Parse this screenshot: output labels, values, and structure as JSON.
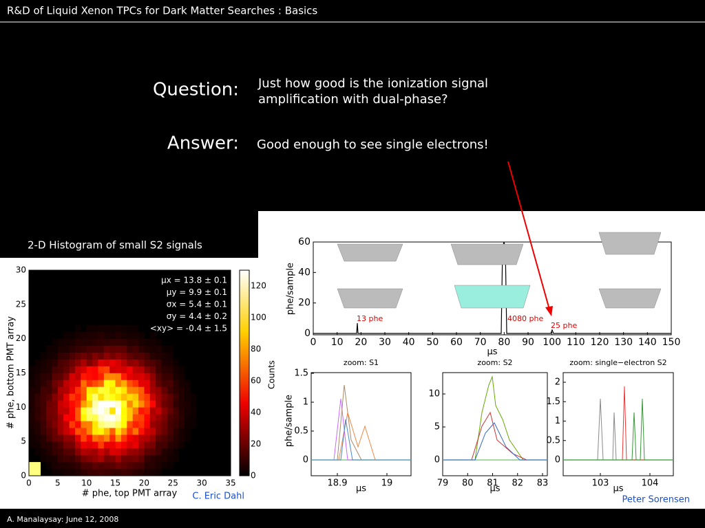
{
  "header": {
    "title": "R&D of Liquid Xenon TPCs for Dark Matter Searches : Basics"
  },
  "question": {
    "label": "Question:",
    "text": [
      "Just how good is the ionization signal",
      "amplification with dual-phase?"
    ]
  },
  "answer": {
    "label": "Answer:",
    "text": "Good enough to see single electrons!"
  },
  "histogram": {
    "caption": "2-D Histogram of small S2 signals",
    "xlabel": "# phe, top PMT array",
    "ylabel": "# phe, bottom PMT array",
    "xticks": [
      0,
      5,
      10,
      15,
      20,
      25,
      30,
      35
    ],
    "yticks": [
      0,
      5,
      10,
      15,
      20,
      25,
      30
    ],
    "colorbar_label": "Counts",
    "colorbar_ticks": [
      0,
      20,
      40,
      60,
      80,
      100,
      120
    ],
    "stats": [
      "μx = 13.8 ± 0.1",
      "μy = 9.9 ± 0.1",
      "σx = 5.4 ± 0.1",
      "σy = 4.4 ± 0.2",
      "<xy> = -0.4 ± 1.5"
    ],
    "credit": "C. Eric Dahl"
  },
  "waveform": {
    "ylabel": "phe/sample",
    "xlabel": "μs",
    "xticks": [
      0,
      10,
      20,
      30,
      40,
      50,
      60,
      70,
      80,
      90,
      100,
      110,
      120,
      130,
      140,
      150
    ],
    "yticks": [
      0,
      20,
      40,
      60
    ],
    "annotations": [
      "13 phe",
      "4080 phe",
      "25 phe"
    ]
  },
  "zooms": [
    {
      "title": "zoom: S1",
      "xticks": [
        18.9,
        19
      ],
      "yticks": [
        0,
        0.5,
        1,
        1.5
      ],
      "xlabel": "μs",
      "ylabel": "phe/sample"
    },
    {
      "title": "zoom: S2",
      "xticks": [
        79,
        80,
        81,
        82,
        83
      ],
      "yticks": [
        0,
        5,
        10
      ],
      "xlabel": "μs"
    },
    {
      "title": "zoom: single−electron S2",
      "xticks": [
        103,
        104
      ],
      "yticks": [
        0,
        0.5,
        1,
        1.5,
        2
      ],
      "xlabel": "μs"
    }
  ],
  "credit": "Peter Sorensen",
  "footer": "A. Manalaysay: June 12, 2008"
}
